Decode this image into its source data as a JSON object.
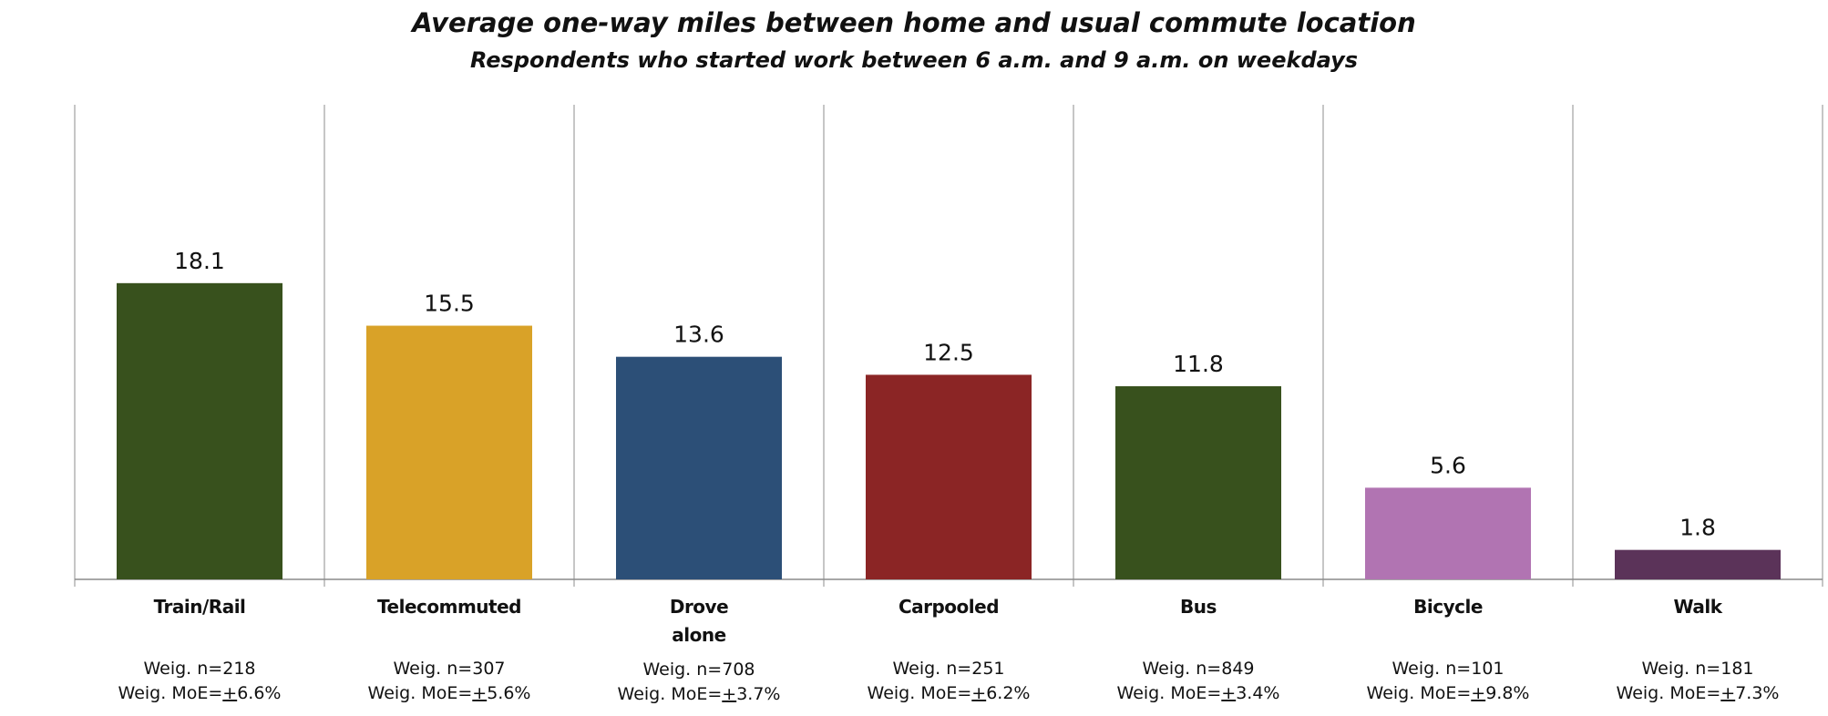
{
  "chart_data": {
    "type": "bar",
    "title": "Average one-way miles between home and usual commute location",
    "subtitle": "Respondents who started work between 6 a.m. and 9 a.m. on weekdays",
    "categories": [
      [
        "Train/Rail"
      ],
      [
        "Telecommuted"
      ],
      [
        "Drove",
        "alone"
      ],
      [
        "Carpooled"
      ],
      [
        "Bus"
      ],
      [
        "Bicycle"
      ],
      [
        "Walk"
      ]
    ],
    "values": [
      18.1,
      15.5,
      13.6,
      12.5,
      11.8,
      5.6,
      1.8
    ],
    "data_labels": [
      "18.1",
      "15.5",
      "13.6",
      "12.5",
      "11.8",
      "5.6",
      "1.8"
    ],
    "colors": [
      "#38511d",
      "#d9a228",
      "#2c4f77",
      "#8b2525",
      "#38511d",
      "#b174b2",
      "#5b3359"
    ],
    "sample_sizes": [
      "Weig. n=218",
      "Weig. n=307",
      "Weig. n=708",
      "Weig. n=251",
      "Weig. n=849",
      "Weig. n=101",
      "Weig. n=181"
    ],
    "margins_of_error": [
      {
        "prefix": "Weig. MoE=",
        "pm": "+",
        "value": "6.6%"
      },
      {
        "prefix": "Weig. MoE=",
        "pm": "+",
        "value": "5.6%"
      },
      {
        "prefix": "Weig. MoE=",
        "pm": "+",
        "value": "3.7%"
      },
      {
        "prefix": "Weig. MoE=",
        "pm": "+",
        "value": "6.2%"
      },
      {
        "prefix": "Weig. MoE=",
        "pm": "+",
        "value": "3.4%"
      },
      {
        "prefix": "Weig. MoE=",
        "pm": "+",
        "value": "9.8%"
      },
      {
        "prefix": "Weig. MoE=",
        "pm": "+",
        "value": "7.3%"
      }
    ],
    "ylim": [
      0,
      29
    ],
    "grid": "vertical separators between categories",
    "legend": "none"
  }
}
